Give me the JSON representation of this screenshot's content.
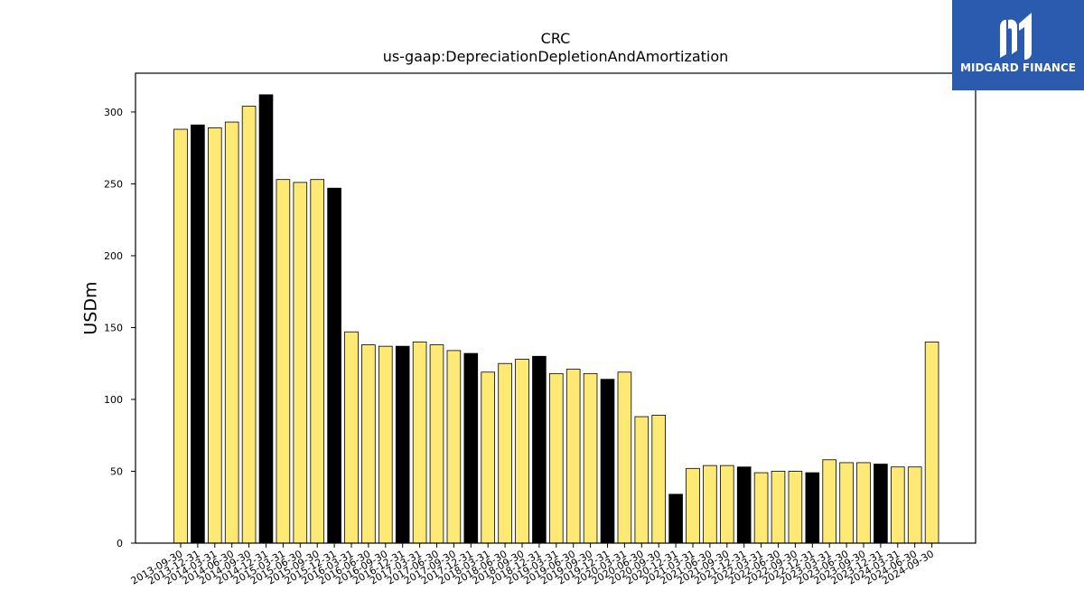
{
  "chart_data": {
    "type": "bar",
    "title": "CRC",
    "subtitle": "us-gaap:DepreciationDepletionAndAmortization",
    "ylabel": "USDm",
    "xlabel": "",
    "ylim": [
      0,
      327
    ],
    "yticks": [
      0,
      50,
      100,
      150,
      200,
      250,
      300
    ],
    "grid": false,
    "colors": {
      "quarter": "#FDE974",
      "annual": "#000000",
      "edge": "#000000"
    },
    "categories": [
      "2013-09-30",
      "2013-12-31",
      "2014-03-31",
      "2014-06-30",
      "2014-09-30",
      "2014-12-31",
      "2015-03-31",
      "2015-06-30",
      "2015-09-30",
      "2015-12-31",
      "2016-03-31",
      "2016-06-30",
      "2016-09-30",
      "2016-12-31",
      "2017-03-31",
      "2017-06-30",
      "2017-09-30",
      "2017-12-31",
      "2018-03-31",
      "2018-06-30",
      "2018-09-30",
      "2018-12-31",
      "2019-03-31",
      "2019-06-30",
      "2019-09-30",
      "2019-12-31",
      "2020-03-31",
      "2020-06-30",
      "2020-09-30",
      "2020-12-31",
      "2021-03-31",
      "2021-06-30",
      "2021-09-30",
      "2021-12-31",
      "2022-03-31",
      "2022-06-30",
      "2022-09-30",
      "2022-12-31",
      "2023-03-31",
      "2023-06-30",
      "2023-09-30",
      "2023-12-31",
      "2024-03-31",
      "2024-06-30",
      "2024-09-30"
    ],
    "values": [
      288,
      291,
      289,
      293,
      304,
      312,
      253,
      251,
      253,
      247,
      147,
      138,
      137,
      137,
      140,
      138,
      134,
      132,
      119,
      125,
      128,
      130,
      118,
      121,
      118,
      114,
      119,
      88,
      89,
      34,
      52,
      54,
      54,
      53,
      49,
      50,
      50,
      49,
      58,
      56,
      56,
      55,
      53,
      53,
      140
    ],
    "annual": [
      false,
      true,
      false,
      false,
      false,
      true,
      false,
      false,
      false,
      true,
      false,
      false,
      false,
      true,
      false,
      false,
      false,
      true,
      false,
      false,
      false,
      true,
      false,
      false,
      false,
      true,
      false,
      false,
      false,
      true,
      false,
      false,
      false,
      true,
      false,
      false,
      false,
      true,
      false,
      false,
      false,
      true,
      false,
      false,
      false
    ]
  },
  "logo": {
    "text": "MIDGARD FINANCE",
    "background": "#2B5BAE",
    "icon": "midgard-m-logo-icon"
  }
}
